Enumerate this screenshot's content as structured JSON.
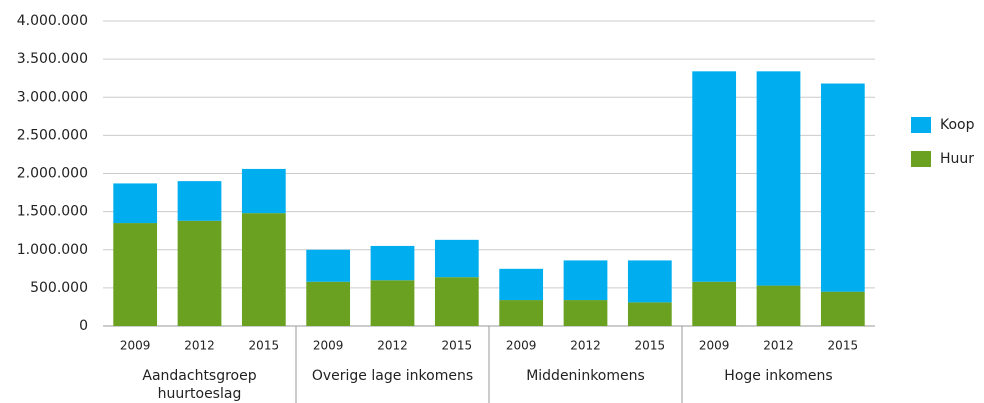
{
  "chart_data": {
    "type": "stacked_bar",
    "groups": [
      {
        "name": "Aandachtsgroep huurtoeslag",
        "categories": [
          "2009",
          "2012",
          "2015"
        ]
      },
      {
        "name": "Overige lage inkomens",
        "categories": [
          "2009",
          "2012",
          "2015"
        ]
      },
      {
        "name": "Middeninkomens",
        "categories": [
          "2009",
          "2012",
          "2015"
        ]
      },
      {
        "name": "Hoge inkomens",
        "categories": [
          "2009",
          "2012",
          "2015"
        ]
      }
    ],
    "series": [
      {
        "name": "Huur",
        "color": "#6aa121",
        "values": [
          1350000,
          1380000,
          1480000,
          580000,
          600000,
          640000,
          340000,
          340000,
          310000,
          580000,
          530000,
          450000
        ]
      },
      {
        "name": "Koop",
        "color": "#00aeef",
        "values": [
          520000,
          520000,
          580000,
          420000,
          450000,
          490000,
          410000,
          520000,
          550000,
          2760000,
          2810000,
          2730000
        ]
      }
    ],
    "ylim": [
      0,
      4000000
    ],
    "yticks": [
      0,
      {
        "value": 500000,
        "label": "500.000"
      },
      {
        "value": 1000000,
        "label": "1.000.000"
      },
      {
        "value": 1500000,
        "label": "1.500.000"
      },
      {
        "value": 2000000,
        "label": "2.000.000"
      },
      {
        "value": 2500000,
        "label": "2.500.000"
      },
      {
        "value": 3000000,
        "label": "3.000.000"
      },
      {
        "value": 3500000,
        "label": "3.500.000"
      },
      {
        "value": 4000000,
        "label": "4.000.000"
      }
    ],
    "grid": true,
    "legend": "right"
  }
}
